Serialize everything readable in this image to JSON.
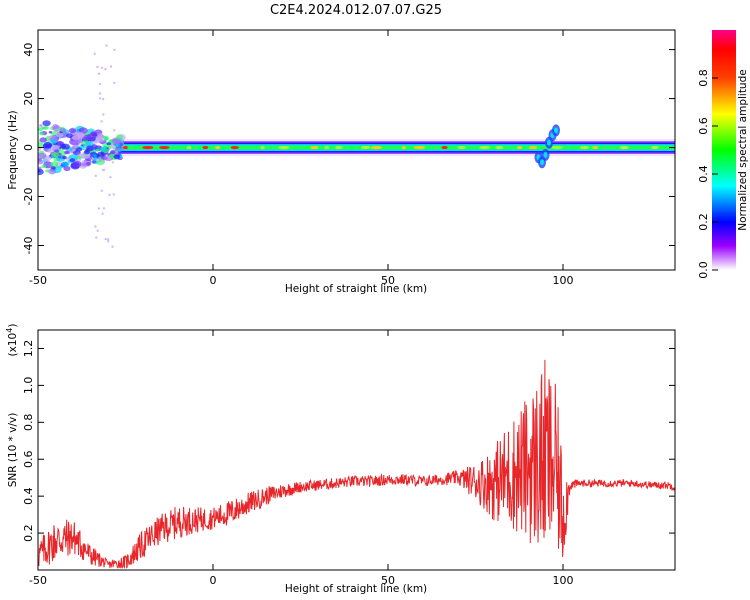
{
  "title": "C2E4.2024.012.07.07.G25",
  "chart_data": [
    {
      "type": "heatmap",
      "xlabel": "Height of straight line (km)",
      "ylabel": "Frequency (Hz)",
      "xlim": [
        -50,
        132
      ],
      "ylim": [
        -50,
        48
      ],
      "xticks": [
        -50,
        0,
        50,
        100
      ],
      "yticks": [
        -40,
        -20,
        0,
        20,
        40
      ],
      "colorbar": {
        "label": "Normalized spectral amplitude",
        "range": [
          0.0,
          1.0
        ],
        "ticks": [
          0.0,
          0.2,
          0.4,
          0.6,
          0.8
        ],
        "colors": [
          "#ffffff",
          "#8800ff",
          "#0000ff",
          "#00ffff",
          "#00ff00",
          "#ffff00",
          "#ff0000",
          "#ff0088"
        ]
      },
      "band": {
        "center_hz": 0,
        "notes": "strong narrow band near 0 Hz across the full height range; broad scatter between -50 and -28 km; upward wiggle near 95-98 km"
      }
    },
    {
      "type": "line",
      "xlabel": "Height of straight line (km)",
      "ylabel": "SNR (10 * v/v)",
      "y_multiplier": "(x10",
      "y_multiplier_exp": "4",
      "y_multiplier_close": ")",
      "xlim": [
        -50,
        132
      ],
      "ylim": [
        0,
        1.3
      ],
      "xticks": [
        -50,
        0,
        50,
        100
      ],
      "yticks": [
        0.2,
        0.4,
        0.6,
        0.8,
        1.0,
        1.2
      ],
      "series": [
        {
          "color": "#e8262a",
          "x": [
            -50,
            -45,
            -40,
            -35,
            -30,
            -25,
            -20,
            -15,
            -10,
            -5,
            0,
            5,
            10,
            15,
            20,
            25,
            30,
            35,
            40,
            45,
            50,
            55,
            60,
            65,
            70,
            75,
            80,
            85,
            90,
            95,
            98,
            100,
            102,
            105,
            110,
            115,
            120,
            125,
            130,
            132
          ],
          "values": [
            0.08,
            0.16,
            0.18,
            0.08,
            0.03,
            0.04,
            0.14,
            0.22,
            0.26,
            0.27,
            0.28,
            0.31,
            0.36,
            0.4,
            0.43,
            0.45,
            0.46,
            0.47,
            0.48,
            0.48,
            0.49,
            0.49,
            0.48,
            0.49,
            0.5,
            0.48,
            0.47,
            0.52,
            0.55,
            0.6,
            0.55,
            0.3,
            0.46,
            0.47,
            0.47,
            0.47,
            0.47,
            0.46,
            0.46,
            0.45
          ],
          "noise_amplitude": [
            0.08,
            0.12,
            0.1,
            0.06,
            0.02,
            0.04,
            0.08,
            0.08,
            0.09,
            0.07,
            0.06,
            0.07,
            0.06,
            0.05,
            0.04,
            0.03,
            0.03,
            0.03,
            0.03,
            0.03,
            0.03,
            0.03,
            0.03,
            0.03,
            0.04,
            0.1,
            0.2,
            0.3,
            0.4,
            0.55,
            0.45,
            0.3,
            0.03,
            0.02,
            0.02,
            0.02,
            0.02,
            0.02,
            0.02,
            0.02
          ]
        }
      ]
    }
  ]
}
